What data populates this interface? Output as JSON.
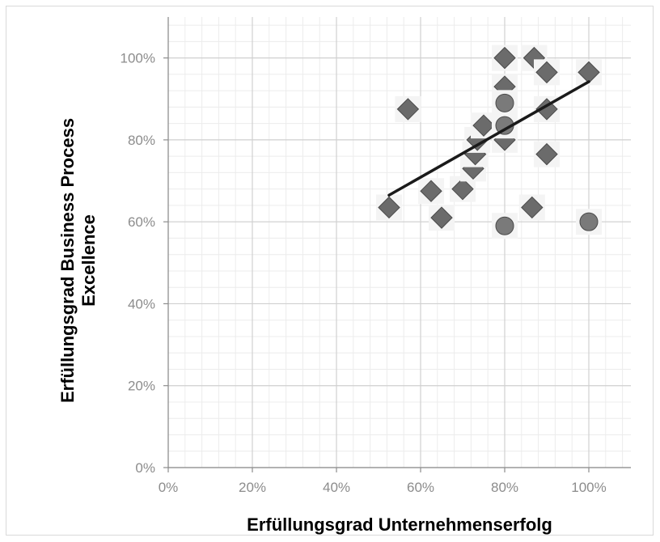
{
  "chart_data": {
    "type": "scatter",
    "title": "",
    "xlabel": "Erfüllungsgrad Unternehmenserfolg",
    "ylabel_line1": "Erfüllungsgrad Business Process",
    "ylabel_line2": "Excellence",
    "xlim": [
      0,
      1.1
    ],
    "ylim": [
      0,
      1.1
    ],
    "x_ticks": [
      {
        "value": 0,
        "label": "0%"
      },
      {
        "value": 0.2,
        "label": "20%"
      },
      {
        "value": 0.4,
        "label": "40%"
      },
      {
        "value": 0.6,
        "label": "60%"
      },
      {
        "value": 0.8,
        "label": "80%"
      },
      {
        "value": 1.0,
        "label": "100%"
      }
    ],
    "y_ticks": [
      {
        "value": 0,
        "label": "0%"
      },
      {
        "value": 0.2,
        "label": "20%"
      },
      {
        "value": 0.4,
        "label": "40%"
      },
      {
        "value": 0.6,
        "label": "60%"
      },
      {
        "value": 0.8,
        "label": "80%"
      },
      {
        "value": 1.0,
        "label": "100%"
      }
    ],
    "grid": true,
    "minor_grid": true,
    "marker_color": "#6b6b6b",
    "marker_edge_color": "#4a4a4a",
    "trendline_color": "#1a1a1a",
    "series": [
      {
        "marker": "diamond",
        "points": [
          {
            "x": 0.525,
            "y": 0.635
          },
          {
            "x": 0.57,
            "y": 0.875
          },
          {
            "x": 0.625,
            "y": 0.675
          },
          {
            "x": 0.65,
            "y": 0.61
          },
          {
            "x": 0.7,
            "y": 0.68
          },
          {
            "x": 0.725,
            "y": 0.73
          },
          {
            "x": 0.73,
            "y": 0.765
          },
          {
            "x": 0.735,
            "y": 0.8
          },
          {
            "x": 0.75,
            "y": 0.835
          },
          {
            "x": 0.8,
            "y": 1.0
          },
          {
            "x": 0.8,
            "y": 0.93
          },
          {
            "x": 0.8,
            "y": 0.8
          },
          {
            "x": 0.865,
            "y": 0.635
          },
          {
            "x": 0.87,
            "y": 1.0
          },
          {
            "x": 0.9,
            "y": 0.965
          },
          {
            "x": 0.9,
            "y": 0.875
          },
          {
            "x": 0.9,
            "y": 0.765
          },
          {
            "x": 1.0,
            "y": 0.965
          }
        ]
      },
      {
        "marker": "circle",
        "points": [
          {
            "x": 0.8,
            "y": 0.89
          },
          {
            "x": 0.8,
            "y": 0.835
          },
          {
            "x": 0.8,
            "y": 0.59
          },
          {
            "x": 1.0,
            "y": 0.6
          }
        ]
      }
    ],
    "trendline": {
      "x1": 0.525,
      "y1": 0.665,
      "x2": 1.0,
      "y2": 0.942
    }
  }
}
